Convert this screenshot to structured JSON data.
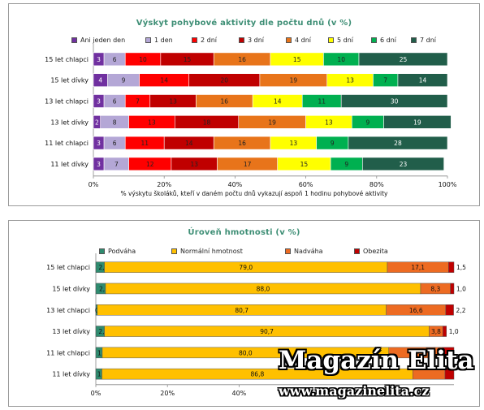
{
  "chart_data": [
    {
      "type": "bar",
      "orientation": "horizontal",
      "stacked": true,
      "title": "Výskyt pohybové aktivity dle počtu dnů  (v %)",
      "xlabel": "% výskytu školáků, kteří v daném počtu dnů vykazují aspoň 1 hodinu pohybové aktivity",
      "ylabel": "",
      "xlim": [
        0,
        100
      ],
      "x_ticks": [
        "0%",
        "20%",
        "40%",
        "60%",
        "80%",
        "100%"
      ],
      "legend_position": "top",
      "categories": [
        "15 let chlapci",
        "15 let dívky",
        "13 let chlapci",
        "13 let dívky",
        "11 let chlapci",
        "11 let dívky"
      ],
      "series": [
        {
          "name": "Ani jeden den",
          "color": "#7030a0",
          "values": [
            3,
            4,
            3,
            2,
            3,
            3
          ]
        },
        {
          "name": "1 den",
          "color": "#b4a7d6",
          "values": [
            6,
            9,
            6,
            8,
            6,
            7
          ]
        },
        {
          "name": "2 dní",
          "color": "#ff0000",
          "values": [
            10,
            14,
            7,
            13,
            11,
            12
          ]
        },
        {
          "name": "3 dní",
          "color": "#c00000",
          "values": [
            15,
            20,
            13,
            18,
            14,
            13
          ]
        },
        {
          "name": "4 dní",
          "color": "#e8741a",
          "values": [
            16,
            19,
            16,
            19,
            16,
            17
          ]
        },
        {
          "name": "5 dní",
          "color": "#ffff00",
          "values": [
            15,
            13,
            14,
            13,
            13,
            15
          ]
        },
        {
          "name": "6 dní",
          "color": "#00b050",
          "values": [
            10,
            7,
            11,
            9,
            9,
            9
          ]
        },
        {
          "name": "7 dní",
          "color": "#215e4a",
          "values": [
            25,
            14,
            30,
            19,
            28,
            23
          ]
        }
      ]
    },
    {
      "type": "bar",
      "orientation": "horizontal",
      "stacked": true,
      "title": "Úroveň hmotnosti (v %)",
      "xlabel": "",
      "ylabel": "",
      "x_ticks": [
        "0%",
        "20%",
        "40%"
      ],
      "legend_position": "top",
      "categories": [
        "15 let chlapci",
        "15 let dívky",
        "13 let chlapci",
        "13 let dívky",
        "11 let chlapci",
        "11 let dívky"
      ],
      "series": [
        {
          "name": "Podváha",
          "color": "#2e8b6f",
          "values": [
            2.4,
            2.7,
            0.4,
            2.4,
            1.8,
            1.7
          ],
          "labels": [
            "2,4",
            "2,7",
            "0,4",
            "2,4",
            "1,8",
            "1,7"
          ]
        },
        {
          "name": "Normální hmotnost",
          "color": "#ffc000",
          "values": [
            79.0,
            88.0,
            80.7,
            90.7,
            80.0,
            86.8
          ],
          "labels": [
            "79,0",
            "88,0",
            "80,7",
            "90,7",
            "80,0",
            "86,8"
          ]
        },
        {
          "name": "Nadváha",
          "color": "#ed6b22",
          "values": [
            17.1,
            8.3,
            16.6,
            3.8,
            15.0,
            9.0
          ],
          "labels": [
            "17,1",
            "8,3",
            "16,6",
            "3,8",
            "",
            ""
          ]
        },
        {
          "name": "Obezita",
          "color": "#c00000",
          "values": [
            1.5,
            1.0,
            2.2,
            1.0,
            3.2,
            2.5
          ],
          "labels": [
            "1,5",
            "1,0",
            "2,2",
            "1,0",
            "",
            ""
          ]
        }
      ]
    }
  ],
  "watermark": {
    "title": "Magazín Elita",
    "url": "www.magazinelita.cz"
  }
}
